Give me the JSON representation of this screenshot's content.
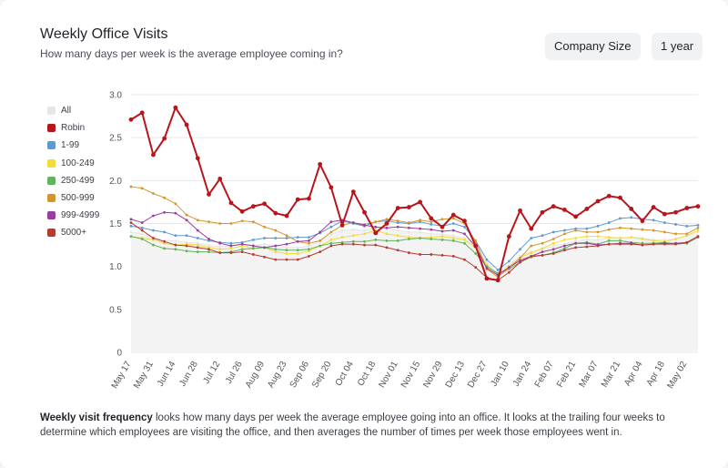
{
  "header": {
    "title": "Weekly Office Visits",
    "subtitle": "How many days per week is the average employee coming in?",
    "company_size_button": "Company Size",
    "range_button": "1 year"
  },
  "legend": [
    {
      "name": "All",
      "color": "#e6e6e6"
    },
    {
      "name": "Robin",
      "color": "#b8141c"
    },
    {
      "name": "1-99",
      "color": "#5b9bd5"
    },
    {
      "name": "100-249",
      "color": "#f2dc3a"
    },
    {
      "name": "250-499",
      "color": "#5fb55a"
    },
    {
      "name": "500-999",
      "color": "#d4952a"
    },
    {
      "name": "999-4999",
      "color": "#9b3d9e"
    },
    {
      "name": "5000+",
      "color": "#b53a32"
    }
  ],
  "footer": {
    "bold": "Weekly visit frequency",
    "text": " looks how many days per week the average employee going into an office. It looks at the trailing four weeks to determine which employees are visiting the office, and then averages the number of times per week those employees went in."
  },
  "chart_data": {
    "type": "line",
    "ylim": [
      0,
      3.0
    ],
    "yticks": [
      0,
      0.5,
      1.0,
      1.5,
      2.0,
      2.5,
      3.0
    ],
    "ytick_labels": [
      "0",
      "0.5",
      "1.0",
      "1.5",
      "2.0",
      "2.5",
      "3.0"
    ],
    "xtick_labels": [
      "May 17",
      "May 31",
      "Jun 14",
      "Jun 28",
      "Jul 12",
      "Jul 26",
      "Aug 09",
      "Aug 23",
      "Sep 06",
      "Sep 20",
      "Oct 04",
      "Oct 18",
      "Nov 01",
      "Nov 15",
      "Nov 29",
      "Dec 13",
      "Dec 27",
      "Jan 10",
      "Jan 24",
      "Feb 07",
      "Feb 21",
      "Mar 07",
      "Mar 21",
      "Apr 04",
      "Apr 18",
      "May 02"
    ],
    "x": [
      "May 17",
      "May 24",
      "May 31",
      "Jun 07",
      "Jun 14",
      "Jun 21",
      "Jun 28",
      "Jul 05",
      "Jul 12",
      "Jul 19",
      "Jul 26",
      "Aug 02",
      "Aug 09",
      "Aug 16",
      "Aug 23",
      "Aug 30",
      "Sep 06",
      "Sep 13",
      "Sep 20",
      "Sep 27",
      "Oct 04",
      "Oct 11",
      "Oct 18",
      "Oct 25",
      "Nov 01",
      "Nov 08",
      "Nov 15",
      "Nov 22",
      "Nov 29",
      "Dec 06",
      "Dec 13",
      "Dec 20",
      "Dec 27",
      "Jan 03",
      "Jan 10",
      "Jan 17",
      "Jan 24",
      "Jan 31",
      "Feb 07",
      "Feb 14",
      "Feb 21",
      "Feb 28",
      "Mar 07",
      "Mar 14",
      "Mar 21",
      "Mar 28",
      "Apr 04",
      "Apr 11",
      "Apr 18",
      "Apr 25",
      "May 02",
      "May 09"
    ],
    "series": [
      {
        "name": "All",
        "color": "#e6e6e6",
        "values": [
          1.4,
          1.38,
          1.34,
          1.3,
          1.3,
          1.28,
          1.27,
          1.25,
          1.23,
          1.24,
          1.26,
          1.25,
          1.26,
          1.24,
          1.22,
          1.22,
          1.24,
          1.3,
          1.37,
          1.42,
          1.43,
          1.42,
          1.45,
          1.44,
          1.42,
          1.4,
          1.4,
          1.38,
          1.38,
          1.36,
          1.33,
          1.28,
          1.05,
          0.92,
          1.02,
          1.12,
          1.17,
          1.2,
          1.24,
          1.26,
          1.3,
          1.31,
          1.31,
          1.33,
          1.33,
          1.34,
          1.33,
          1.31,
          1.31,
          1.32,
          1.36,
          1.4
        ]
      },
      {
        "name": "Robin",
        "color": "#b8141c",
        "values": [
          2.71,
          2.79,
          2.3,
          2.49,
          2.85,
          2.65,
          2.26,
          1.84,
          2.02,
          1.74,
          1.64,
          1.7,
          1.73,
          1.62,
          1.59,
          1.78,
          1.79,
          2.19,
          1.92,
          1.48,
          1.87,
          1.63,
          1.39,
          1.5,
          1.68,
          1.69,
          1.75,
          1.56,
          1.46,
          1.6,
          1.53,
          1.24,
          0.86,
          0.84,
          1.35,
          1.65,
          1.44,
          1.63,
          1.7,
          1.66,
          1.58,
          1.67,
          1.76,
          1.82,
          1.8,
          1.67,
          1.53,
          1.69,
          1.61,
          1.63,
          1.68,
          1.7
        ]
      },
      {
        "name": "1-99",
        "color": "#5b9bd5",
        "values": [
          1.47,
          1.45,
          1.42,
          1.4,
          1.36,
          1.36,
          1.33,
          1.3,
          1.28,
          1.27,
          1.28,
          1.31,
          1.33,
          1.33,
          1.33,
          1.34,
          1.34,
          1.39,
          1.46,
          1.53,
          1.5,
          1.47,
          1.52,
          1.53,
          1.51,
          1.5,
          1.52,
          1.49,
          1.47,
          1.5,
          1.46,
          1.3,
          1.08,
          0.96,
          1.06,
          1.2,
          1.33,
          1.36,
          1.4,
          1.42,
          1.44,
          1.44,
          1.47,
          1.51,
          1.56,
          1.57,
          1.55,
          1.54,
          1.51,
          1.49,
          1.47,
          1.48
        ]
      },
      {
        "name": "100-249",
        "color": "#f2dc3a",
        "values": [
          1.35,
          1.33,
          1.31,
          1.27,
          1.25,
          1.26,
          1.25,
          1.22,
          1.2,
          1.21,
          1.24,
          1.21,
          1.22,
          1.17,
          1.15,
          1.15,
          1.18,
          1.24,
          1.31,
          1.34,
          1.36,
          1.38,
          1.42,
          1.38,
          1.36,
          1.34,
          1.33,
          1.34,
          1.35,
          1.33,
          1.31,
          1.22,
          1.02,
          0.9,
          1.0,
          1.1,
          1.16,
          1.21,
          1.27,
          1.31,
          1.33,
          1.35,
          1.35,
          1.34,
          1.33,
          1.34,
          1.32,
          1.3,
          1.29,
          1.32,
          1.36,
          1.42
        ]
      },
      {
        "name": "250-499",
        "color": "#5fb55a",
        "values": [
          1.35,
          1.32,
          1.25,
          1.21,
          1.2,
          1.18,
          1.17,
          1.17,
          1.16,
          1.17,
          1.2,
          1.21,
          1.22,
          1.2,
          1.19,
          1.19,
          1.2,
          1.24,
          1.27,
          1.28,
          1.29,
          1.29,
          1.31,
          1.3,
          1.3,
          1.32,
          1.33,
          1.32,
          1.31,
          1.3,
          1.27,
          1.15,
          1.0,
          0.92,
          0.97,
          1.05,
          1.11,
          1.13,
          1.16,
          1.21,
          1.27,
          1.28,
          1.26,
          1.3,
          1.3,
          1.28,
          1.27,
          1.27,
          1.28,
          1.26,
          1.27,
          1.34
        ]
      },
      {
        "name": "500-999",
        "color": "#d4952a",
        "values": [
          1.93,
          1.91,
          1.85,
          1.8,
          1.73,
          1.6,
          1.54,
          1.52,
          1.5,
          1.5,
          1.53,
          1.52,
          1.46,
          1.42,
          1.36,
          1.29,
          1.27,
          1.3,
          1.4,
          1.48,
          1.51,
          1.49,
          1.52,
          1.55,
          1.53,
          1.51,
          1.54,
          1.52,
          1.55,
          1.56,
          1.5,
          1.29,
          0.97,
          0.88,
          0.98,
          1.1,
          1.24,
          1.27,
          1.32,
          1.38,
          1.42,
          1.4,
          1.4,
          1.43,
          1.45,
          1.44,
          1.43,
          1.42,
          1.4,
          1.38,
          1.38,
          1.45
        ]
      },
      {
        "name": "999-4999",
        "color": "#9b3d9e",
        "values": [
          1.55,
          1.51,
          1.59,
          1.63,
          1.62,
          1.54,
          1.42,
          1.32,
          1.27,
          1.24,
          1.26,
          1.24,
          1.22,
          1.24,
          1.26,
          1.29,
          1.3,
          1.4,
          1.52,
          1.54,
          1.51,
          1.48,
          1.46,
          1.45,
          1.46,
          1.45,
          1.44,
          1.43,
          1.41,
          1.42,
          1.38,
          1.23,
          0.98,
          0.9,
          0.99,
          1.07,
          1.12,
          1.17,
          1.2,
          1.24,
          1.27,
          1.27,
          1.25,
          1.26,
          1.27,
          1.27,
          1.25,
          1.26,
          1.27,
          1.27,
          1.28,
          1.35
        ]
      },
      {
        "name": "5000+",
        "color": "#b53a32",
        "values": [
          1.51,
          1.42,
          1.33,
          1.29,
          1.25,
          1.24,
          1.22,
          1.2,
          1.16,
          1.16,
          1.17,
          1.14,
          1.11,
          1.08,
          1.08,
          1.08,
          1.12,
          1.17,
          1.24,
          1.26,
          1.26,
          1.25,
          1.25,
          1.22,
          1.19,
          1.16,
          1.14,
          1.14,
          1.13,
          1.12,
          1.08,
          0.99,
          0.87,
          0.84,
          0.93,
          1.05,
          1.12,
          1.13,
          1.15,
          1.19,
          1.22,
          1.23,
          1.24,
          1.26,
          1.26,
          1.26,
          1.25,
          1.26,
          1.26,
          1.26,
          1.28,
          1.35
        ]
      }
    ]
  }
}
